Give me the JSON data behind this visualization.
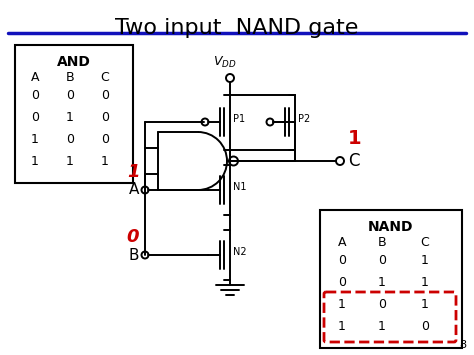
{
  "title": "Two input  NAND gate",
  "title_fontsize": 16,
  "background_color": "#ffffff",
  "blue_line_color": "#1111bb",
  "red_color": "#cc0000",
  "black_color": "#000000",
  "page_number": "8",
  "and_table": {
    "header": "AND",
    "cols": [
      "A",
      "B",
      "C"
    ],
    "rows": [
      [
        "0",
        "0",
        "0"
      ],
      [
        "0",
        "1",
        "0"
      ],
      [
        "1",
        "0",
        "0"
      ],
      [
        "1",
        "1",
        "1"
      ]
    ]
  },
  "nand_table": {
    "header": "NAND",
    "cols": [
      "A",
      "B",
      "C"
    ],
    "rows": [
      [
        "0",
        "0",
        "1"
      ],
      [
        "0",
        "1",
        "1"
      ],
      [
        "1",
        "0",
        "1"
      ],
      [
        "1",
        "1",
        "0"
      ]
    ],
    "highlight_row": 2
  },
  "labels": {
    "A_val": "1",
    "B_val": "0",
    "C_val": "1",
    "P1": "P1",
    "P2": "P2",
    "N1": "N1",
    "N2": "N2",
    "A": "A",
    "B": "B",
    "C": "C"
  }
}
